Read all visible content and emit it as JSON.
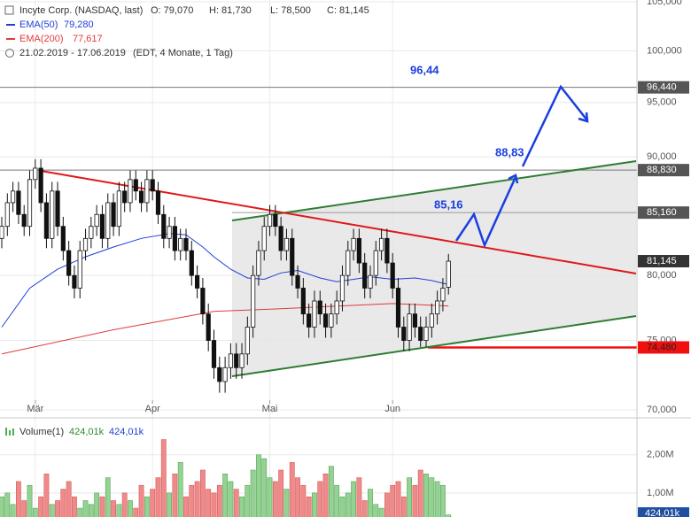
{
  "chart_data": [
    {
      "type": "candlestick",
      "title": "Incyte Corp. (NASDAQ, last)",
      "ohlc_labels": [
        "O: 79,070",
        "H: 81,730",
        "L: 78,500",
        "C: 81,145"
      ],
      "period": "21.02.2019 - 17.06.2019",
      "period_note": "(EDT, 4 Monate, 1 Tag)",
      "log_scale": true,
      "grid": true,
      "xlim": [
        0,
        113.6
      ],
      "xticks": [
        {
          "value": 6,
          "label": "Mär"
        },
        {
          "value": 27,
          "label": "Apr"
        },
        {
          "value": 48,
          "label": "Mai"
        },
        {
          "value": 70,
          "label": "Jun"
        }
      ],
      "ylim": [
        70,
        105
      ],
      "yticks": [
        {
          "value": 70,
          "label": "70,000"
        },
        {
          "value": 75,
          "label": "75,000"
        },
        {
          "value": 80,
          "label": "80,000"
        },
        {
          "value": 90,
          "label": "90,000"
        },
        {
          "value": 95,
          "label": "95,000"
        },
        {
          "value": 100,
          "label": "100,000"
        },
        {
          "value": 105,
          "label": "105,000"
        }
      ],
      "up_color": "#ffffff",
      "down_color": "#111111",
      "ohlc": [
        [
          83,
          84.8,
          82.2,
          84
        ],
        [
          84,
          86.8,
          83.2,
          86
        ],
        [
          86,
          87.8,
          85.2,
          87
        ],
        [
          87,
          87.8,
          84.2,
          85
        ],
        [
          85,
          85.8,
          83.2,
          84
        ],
        [
          84,
          88.8,
          83.2,
          88
        ],
        [
          88,
          89.8,
          87.2,
          89
        ],
        [
          89,
          89.8,
          85.2,
          86
        ],
        [
          86,
          86.8,
          82.2,
          83
        ],
        [
          83,
          87.8,
          82.2,
          87
        ],
        [
          87,
          87.8,
          83.2,
          84
        ],
        [
          84,
          84.8,
          81.2,
          82
        ],
        [
          82,
          82.8,
          79.2,
          80
        ],
        [
          80,
          80.8,
          78.2,
          79
        ],
        [
          79,
          82.8,
          78.2,
          82
        ],
        [
          82,
          83.8,
          81.2,
          83
        ],
        [
          83,
          84.8,
          82.2,
          84
        ],
        [
          84,
          85.8,
          83.2,
          85
        ],
        [
          85,
          85.8,
          82.2,
          83
        ],
        [
          83,
          86.8,
          82.2,
          86
        ],
        [
          86,
          86.8,
          83.2,
          84
        ],
        [
          84,
          87.8,
          83.2,
          87
        ],
        [
          87,
          87.8,
          85.2,
          86
        ],
        [
          86,
          88.8,
          85.2,
          88
        ],
        [
          88,
          88.8,
          86.2,
          87
        ],
        [
          87,
          87.8,
          85.2,
          86
        ],
        [
          86,
          88.8,
          85.2,
          88
        ],
        [
          88,
          88.8,
          86.2,
          87
        ],
        [
          87,
          87.8,
          84.2,
          85
        ],
        [
          85,
          85.8,
          82.2,
          83
        ],
        [
          83,
          84.8,
          82.2,
          84
        ],
        [
          84,
          84.8,
          81.2,
          82
        ],
        [
          82,
          83.8,
          81.2,
          83
        ],
        [
          83,
          83.8,
          81.2,
          82
        ],
        [
          82,
          82.8,
          79.2,
          80
        ],
        [
          80,
          80.8,
          78.2,
          79
        ],
        [
          79,
          79.8,
          76.2,
          77
        ],
        [
          77,
          77.8,
          74.2,
          75
        ],
        [
          75,
          75.8,
          72.2,
          73
        ],
        [
          73,
          73.8,
          71.2,
          72
        ],
        [
          72,
          73.8,
          71.2,
          73
        ],
        [
          73,
          74.8,
          72.2,
          74
        ],
        [
          74,
          74.8,
          72.2,
          73
        ],
        [
          73,
          74.8,
          72.2,
          74
        ],
        [
          74,
          76.8,
          73.2,
          76
        ],
        [
          76,
          80.8,
          75.2,
          80
        ],
        [
          80,
          82.8,
          79.2,
          82
        ],
        [
          82,
          84.8,
          81.2,
          84
        ],
        [
          84,
          85.8,
          83.2,
          85
        ],
        [
          85,
          85.8,
          83.2,
          84
        ],
        [
          84,
          84.8,
          81.2,
          82
        ],
        [
          82,
          83.8,
          81.2,
          83
        ],
        [
          83,
          83.8,
          79.2,
          80
        ],
        [
          80,
          80.8,
          78.2,
          79
        ],
        [
          79,
          79.8,
          76.2,
          77
        ],
        [
          77,
          77.8,
          75.2,
          76
        ],
        [
          76,
          78.8,
          75.2,
          78
        ],
        [
          78,
          78.8,
          76.2,
          77
        ],
        [
          77,
          77.8,
          75.2,
          76
        ],
        [
          76,
          77.8,
          75.2,
          77
        ],
        [
          77,
          78.8,
          76.2,
          78
        ],
        [
          78,
          80.8,
          77.2,
          80
        ],
        [
          80,
          82.8,
          79.2,
          82
        ],
        [
          82,
          83.8,
          81.2,
          83
        ],
        [
          83,
          83.8,
          80.2,
          81
        ],
        [
          81,
          81.8,
          78.2,
          79
        ],
        [
          79,
          80.8,
          78.2,
          80
        ],
        [
          80,
          82.8,
          79.2,
          82
        ],
        [
          82,
          83.8,
          81.2,
          83
        ],
        [
          83,
          83.8,
          80.2,
          81
        ],
        [
          81,
          81.8,
          78.2,
          79
        ],
        [
          79,
          79.8,
          75.2,
          76
        ],
        [
          76,
          76.8,
          74.2,
          75
        ],
        [
          75,
          77.8,
          74.2,
          77
        ],
        [
          77,
          77.8,
          75.2,
          76
        ],
        [
          76,
          76.8,
          74.5,
          75
        ],
        [
          75,
          76.8,
          74.5,
          76
        ],
        [
          76,
          77.8,
          75.2,
          77
        ],
        [
          77,
          78.8,
          76.2,
          78
        ],
        [
          78,
          79.8,
          77.2,
          79
        ],
        [
          79.07,
          81.73,
          78.5,
          81.145
        ]
      ],
      "series": [
        {
          "name": "EMA(50)",
          "color": "#1f3fd6",
          "last_label": "79,280",
          "x": [
            0,
            5,
            10,
            15,
            20,
            25,
            30,
            33,
            36,
            38,
            41,
            44,
            47,
            50,
            53,
            57,
            60,
            63,
            66,
            70,
            74,
            77,
            80
          ],
          "values": [
            76,
            79,
            80.5,
            81.5,
            82.3,
            83,
            83.4,
            83.3,
            82.3,
            81.5,
            80.5,
            79.8,
            79.7,
            80.2,
            80.4,
            79.8,
            79.5,
            79.7,
            79.9,
            79.7,
            79.8,
            79.6,
            79.28
          ]
        },
        {
          "name": "EMA(200)",
          "color": "#e03a3a",
          "last_label": "77,617",
          "x": [
            0,
            20,
            38,
            50,
            60,
            70,
            80
          ],
          "values": [
            74,
            75.8,
            77.2,
            77.4,
            77.6,
            77.8,
            77.617
          ]
        }
      ],
      "levels": [
        {
          "value": 96.44,
          "label": "96,440",
          "callout": "96,44"
        },
        {
          "value": 88.83,
          "label": "88,830",
          "callout": "88,83"
        },
        {
          "value": 85.16,
          "label": "85,160",
          "callout": "85,16"
        },
        {
          "value": 74.48,
          "label": "74,480"
        }
      ],
      "last_price": {
        "value": 81.145,
        "label": "81,145"
      }
    },
    {
      "type": "bar",
      "title": "Volume(1)",
      "legend_values": [
        "424,01k",
        "424,01k"
      ],
      "last_label": "424,01k",
      "up_color": "#92d392",
      "down_color": "#f08a8a",
      "ylim": [
        0.37,
        2.9
      ],
      "yticks": [
        {
          "value": 1,
          "label": "1,00M"
        },
        {
          "value": 2,
          "label": "2,00M"
        }
      ],
      "values": [
        0.9,
        1.0,
        0.7,
        1.3,
        0.8,
        1.2,
        0.6,
        0.9,
        1.5,
        0.7,
        0.8,
        1.1,
        1.3,
        0.9,
        0.6,
        0.8,
        0.7,
        1.0,
        0.9,
        1.4,
        0.8,
        0.7,
        1.0,
        0.8,
        0.6,
        1.2,
        0.9,
        1.1,
        1.4,
        2.4,
        1.0,
        1.5,
        1.8,
        0.9,
        1.2,
        1.3,
        1.6,
        1.1,
        1.0,
        1.2,
        1.5,
        1.3,
        1.1,
        0.9,
        1.2,
        1.6,
        2.0,
        1.9,
        1.4,
        1.3,
        1.6,
        1.1,
        1.8,
        1.4,
        1.2,
        0.9,
        1.0,
        1.3,
        1.5,
        1.7,
        1.2,
        0.9,
        1.0,
        1.3,
        1.4,
        0.8,
        1.1,
        0.7,
        0.6,
        1.0,
        1.2,
        1.3,
        0.9,
        1.4,
        1.2,
        1.6,
        1.5,
        1.4,
        1.3,
        1.2,
        0.42401
      ]
    }
  ]
}
